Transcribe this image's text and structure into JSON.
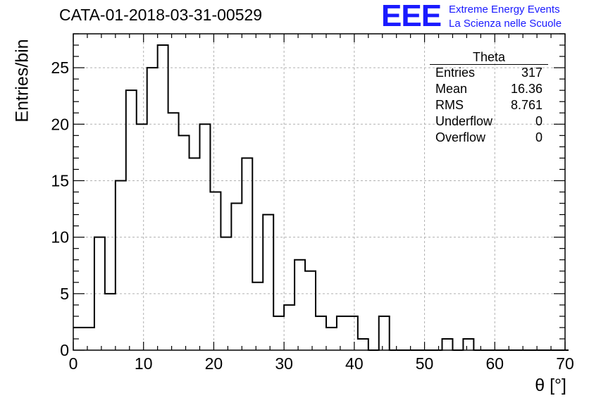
{
  "title": "CATA-01-2018-03-31-00529",
  "logo": "EEE",
  "org_line1": "Extreme Energy Events",
  "org_line2": "La Scienza nelle Scuole",
  "stats": {
    "name": "Theta",
    "rows": [
      {
        "label": "Entries",
        "value": "317"
      },
      {
        "label": "Mean",
        "value": "16.36"
      },
      {
        "label": "RMS",
        "value": "8.761"
      },
      {
        "label": "Underflow",
        "value": "0"
      },
      {
        "label": "Overflow",
        "value": "0"
      }
    ]
  },
  "chart_data": {
    "type": "bar",
    "histogram": true,
    "xlabel": "θ [°]",
    "ylabel": "Entries/bin",
    "xlim": [
      0,
      70
    ],
    "ylim": [
      0,
      28
    ],
    "bin_width": 1.5,
    "bin_edges_start": 0,
    "values": [
      2,
      2,
      10,
      5,
      15,
      23,
      20,
      25,
      27,
      21,
      19,
      17,
      20,
      14,
      10,
      13,
      17,
      6,
      12,
      3,
      4,
      8,
      7,
      3,
      2,
      3,
      3,
      1,
      0,
      3,
      0,
      0,
      0,
      0,
      0,
      1,
      0,
      1,
      0,
      0,
      0,
      0,
      0,
      0,
      0,
      0,
      0
    ],
    "x_ticks": [
      "0",
      "10",
      "20",
      "30",
      "40",
      "50",
      "60",
      "70"
    ],
    "y_ticks": [
      "0",
      "5",
      "10",
      "15",
      "20",
      "25"
    ],
    "grid": true,
    "line_color": "#000000",
    "grid_color": "#b0b0b0"
  }
}
